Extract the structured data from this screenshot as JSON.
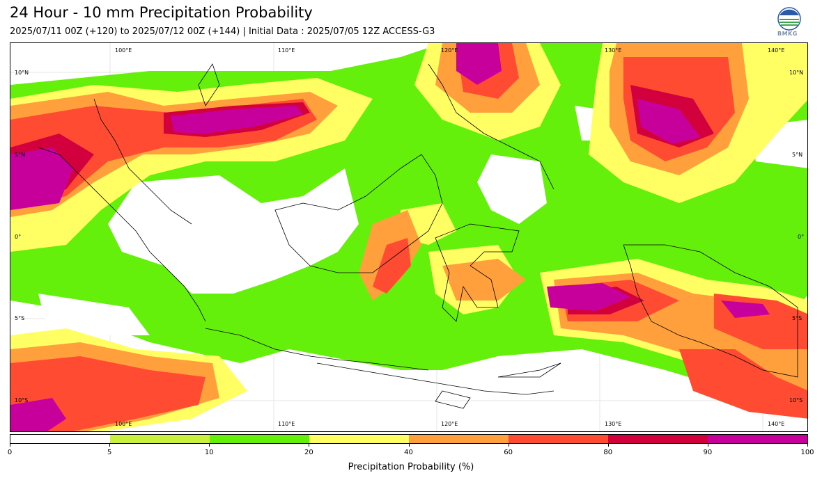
{
  "header": {
    "title": "24 Hour - 10 mm Precipitation Probability",
    "subtitle": "2025/07/11 00Z (+120) to 2025/07/12 00Z (+144) | Initial Data : 2025/07/05 12Z ACCESS-G3",
    "logo_text": "BMKG"
  },
  "map": {
    "lon_labels_top": [
      "100°E",
      "110°E",
      "120°E",
      "130°E",
      "140°E"
    ],
    "lon_labels_bottom": [
      "100°E",
      "110°E",
      "120°E",
      "130°E",
      "140°E"
    ],
    "lat_labels_left": [
      "10°N",
      "5°N",
      "0°",
      "5°S",
      "10°S"
    ],
    "lat_labels_right": [
      "10°N",
      "5°N",
      "0°",
      "5°S",
      "10°S"
    ]
  },
  "colorbar": {
    "title": "Precipitation Probability (%)",
    "ticks": [
      "0",
      "5",
      "10",
      "20",
      "40",
      "60",
      "80",
      "90",
      "100"
    ],
    "colors": [
      "#ffffff",
      "#c8f03c",
      "#64f00a",
      "#ffff64",
      "#ffa03c",
      "#ff4b32",
      "#d2003c",
      "#c8009b"
    ]
  }
}
